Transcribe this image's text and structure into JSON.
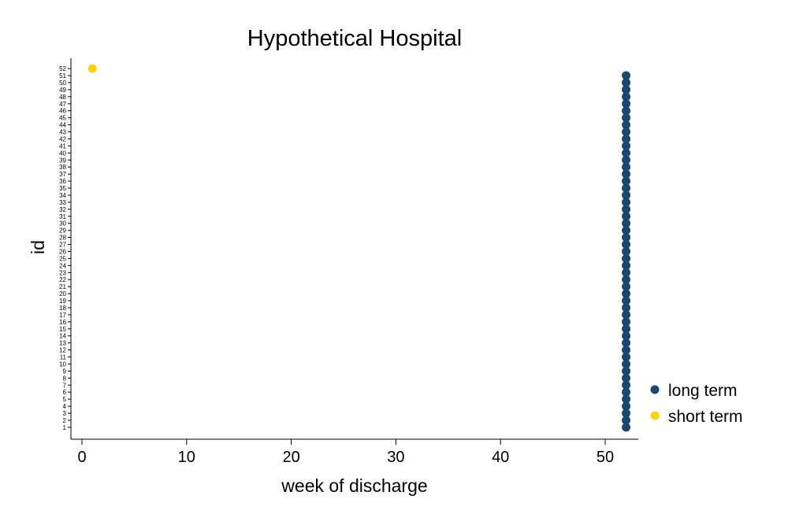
{
  "chart_data": {
    "type": "scatter",
    "title": "Hypothetical Hospital",
    "xlabel": "week of discharge",
    "ylabel": "id",
    "xlim": [
      -1,
      53
    ],
    "ylim": [
      0,
      53
    ],
    "x_ticks": [
      0,
      10,
      20,
      30,
      40,
      50
    ],
    "x_tick_labels": [
      "0",
      "10",
      "20",
      "30",
      "40",
      "50"
    ],
    "y_ticks": [
      1,
      2,
      3,
      4,
      5,
      6,
      7,
      8,
      9,
      10,
      11,
      12,
      13,
      14,
      15,
      16,
      17,
      18,
      19,
      20,
      21,
      22,
      23,
      24,
      25,
      26,
      27,
      28,
      29,
      30,
      31,
      32,
      33,
      34,
      35,
      36,
      37,
      38,
      39,
      40,
      41,
      42,
      43,
      44,
      45,
      46,
      47,
      48,
      49,
      50,
      51,
      52
    ],
    "y_tick_labels": [
      "1",
      "2",
      "3",
      "4",
      "5",
      "6",
      "7",
      "8",
      "9",
      "10",
      "11",
      "12",
      "13",
      "14",
      "15",
      "16",
      "17",
      "18",
      "19",
      "20",
      "21",
      "22",
      "23",
      "24",
      "25",
      "26",
      "27",
      "28",
      "29",
      "30",
      "31",
      "32",
      "33",
      "34",
      "35",
      "36",
      "37",
      "38",
      "39",
      "40",
      "41",
      "42",
      "43",
      "44",
      "45",
      "46",
      "47",
      "48",
      "49",
      "50",
      "51",
      "52"
    ],
    "grid": false,
    "legend_position": "right",
    "series": [
      {
        "name": "long term",
        "color": "#1a476f",
        "x": [
          52,
          52,
          52,
          52,
          52,
          52,
          52,
          52,
          52,
          52,
          52,
          52,
          52,
          52,
          52,
          52,
          52,
          52,
          52,
          52,
          52,
          52,
          52,
          52,
          52,
          52,
          52,
          52,
          52,
          52,
          52,
          52,
          52,
          52,
          52,
          52,
          52,
          52,
          52,
          52,
          52,
          52,
          52,
          52,
          52,
          52,
          52,
          52,
          52,
          52,
          52
        ],
        "y": [
          1,
          2,
          3,
          4,
          5,
          6,
          7,
          8,
          9,
          10,
          11,
          12,
          13,
          14,
          15,
          16,
          17,
          18,
          19,
          20,
          21,
          22,
          23,
          24,
          25,
          26,
          27,
          28,
          29,
          30,
          31,
          32,
          33,
          34,
          35,
          36,
          37,
          38,
          39,
          40,
          41,
          42,
          43,
          44,
          45,
          46,
          47,
          48,
          49,
          50,
          51
        ]
      },
      {
        "name": "short term",
        "color": "#ffd200",
        "x": [
          1
        ],
        "y": [
          52
        ]
      }
    ]
  }
}
